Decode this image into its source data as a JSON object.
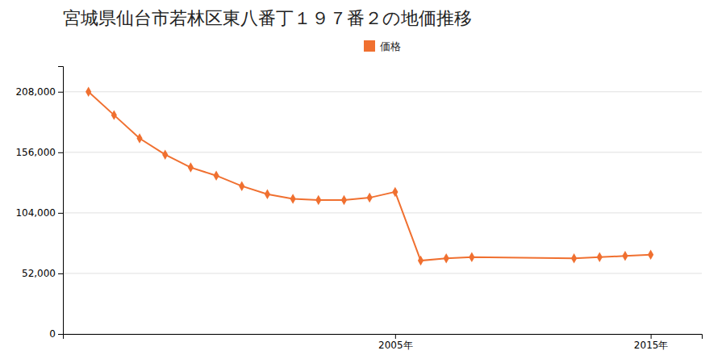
{
  "chart_data": {
    "type": "line",
    "title": "宮城県仙台市若林区東八番丁１９７番２の地価推移",
    "x": [
      1993,
      1994,
      1995,
      1996,
      1997,
      1998,
      1999,
      2000,
      2001,
      2002,
      2003,
      2004,
      2005,
      2006,
      2007,
      2008,
      2012,
      2013,
      2014,
      2015
    ],
    "series": [
      {
        "name": "価格",
        "color": "#f07030",
        "marker": "diamond",
        "values": [
          208000,
          188000,
          168000,
          154000,
          143000,
          136000,
          127000,
          120000,
          116000,
          115000,
          115000,
          117000,
          122000,
          63000,
          65000,
          66000,
          65000,
          66000,
          67000,
          68000
        ]
      }
    ],
    "xlim": [
      1992,
      2017
    ],
    "xticks": [
      {
        "value": 2005,
        "label": "2005年"
      },
      {
        "value": 2015,
        "label": "2015年"
      }
    ],
    "ylim": [
      0,
      230000
    ],
    "yticks": [
      0,
      {
        "value": 52000,
        "label": "52,000"
      },
      {
        "value": 104000,
        "label": "104,000"
      },
      {
        "value": 156000,
        "label": "156,000"
      },
      {
        "value": 208000,
        "label": "208,000"
      }
    ],
    "grid": "y",
    "legend": "top"
  }
}
